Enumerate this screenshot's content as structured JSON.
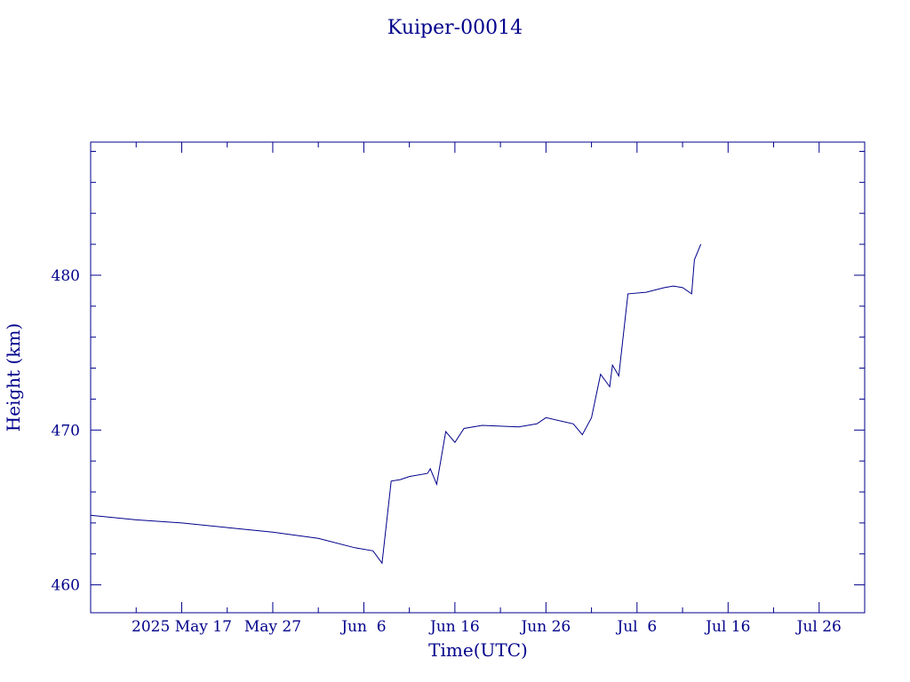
{
  "chart_data": {
    "type": "line",
    "title": "Kuiper-00014",
    "xlabel": "Time(UTC)",
    "ylabel": "Height (km)",
    "x_tick_labels": [
      "2025 May 17",
      "May 27",
      "Jun  6",
      "Jun 16",
      "Jun 26",
      "Jul  6",
      "Jul 16",
      "Jul 26"
    ],
    "x_ticks": [
      "2025-05-17",
      "2025-05-27",
      "2025-06-06",
      "2025-06-16",
      "2025-06-26",
      "2025-07-06",
      "2025-07-16",
      "2025-07-26"
    ],
    "xlim": [
      "2025-05-07",
      "2025-07-31"
    ],
    "ylim": [
      458.2,
      488.6
    ],
    "y_tick_labels": [
      "460",
      "470",
      "480"
    ],
    "y_ticks": [
      460,
      470,
      480
    ],
    "grid": false,
    "colors": {
      "axis": "#00008b",
      "line": "#00008b"
    },
    "series": [
      {
        "x": [
          "2025-05-07",
          "2025-05-12",
          "2025-05-17",
          "2025-05-22",
          "2025-05-27",
          "2025-06-01",
          "2025-06-05",
          "2025-06-07",
          "2025-06-08",
          "2025-06-08",
          "2025-06-09",
          "2025-06-10",
          "2025-06-11",
          "2025-06-13",
          "2025-06-13",
          "2025-06-14",
          "2025-06-15",
          "2025-06-16",
          "2025-06-17",
          "2025-06-19",
          "2025-06-23",
          "2025-06-25",
          "2025-06-26",
          "2025-06-29",
          "2025-06-30",
          "2025-07-01",
          "2025-07-02",
          "2025-07-03",
          "2025-07-03",
          "2025-07-04",
          "2025-07-05",
          "2025-07-07",
          "2025-07-09",
          "2025-07-10",
          "2025-07-11",
          "2025-07-12",
          "2025-07-12",
          "2025-07-13"
        ],
        "y": [
          464.5,
          464.2,
          464.0,
          463.7,
          463.4,
          463.0,
          462.4,
          462.2,
          461.4,
          463.0,
          466.7,
          466.8,
          467.0,
          467.2,
          467.5,
          466.5,
          469.9,
          469.2,
          470.1,
          470.3,
          470.2,
          470.4,
          470.8,
          470.4,
          469.7,
          470.8,
          473.6,
          472.8,
          474.2,
          473.5,
          478.8,
          478.9,
          479.2,
          479.3,
          479.2,
          478.8,
          481.0,
          482.0
        ]
      }
    ]
  }
}
